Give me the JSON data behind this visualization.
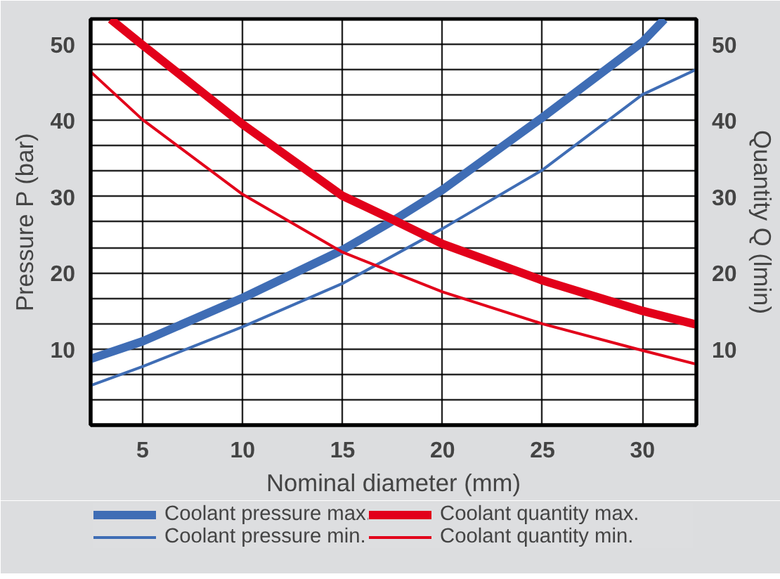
{
  "chart_data": {
    "type": "line",
    "xlabel": "Nominal diameter (mm)",
    "ylabel": "Pressure P (bar)",
    "y2label": "Quantity Q (lmin)",
    "xlim": [
      2.4,
      32.7
    ],
    "xticks": [
      5,
      10,
      15,
      20,
      25,
      30
    ],
    "ylim": [
      0,
      53.33
    ],
    "yticks": [
      {
        "value": 3.33,
        "label": null
      },
      {
        "value": 6.67,
        "label": null
      },
      10,
      {
        "value": 13.33,
        "label": null
      },
      {
        "value": 16.67,
        "label": null
      },
      20,
      {
        "value": 23.33,
        "label": null
      },
      {
        "value": 26.67,
        "label": null
      },
      30,
      {
        "value": 33.33,
        "label": null
      },
      {
        "value": 36.67,
        "label": null
      },
      40,
      {
        "value": 43.33,
        "label": null
      },
      {
        "value": 46.67,
        "label": null
      },
      50
    ],
    "y2lim": [
      0,
      53.33
    ],
    "y2ticks": [
      10,
      20,
      30,
      40,
      50
    ],
    "grid": true,
    "legend": "bottom",
    "marker": "none",
    "line_style": "solid",
    "series": [
      {
        "name": "Coolant pressure max.",
        "color": "#3f6db5",
        "x": [
          2.4,
          5,
          10,
          15,
          17.5,
          20,
          25,
          30,
          31.1
        ],
        "values": [
          8.7,
          11,
          16.7,
          23,
          26.8,
          30.9,
          40.4,
          50.3,
          53.3
        ]
      },
      {
        "name": "Coolant pressure min.",
        "color": "#3f6db5",
        "x": [
          2.4,
          5,
          10,
          15,
          20,
          25,
          30,
          32.7
        ],
        "values": [
          5.2,
          7.7,
          12.9,
          18.6,
          25.8,
          33.5,
          43.4,
          46.7
        ]
      },
      {
        "name": "Coolant quantity max.",
        "color": "#e2001a",
        "axis": "y2",
        "x": [
          3.4,
          5,
          10,
          15,
          17.5,
          20,
          25,
          30,
          32.7
        ],
        "values": [
          53.3,
          49.9,
          39.5,
          30.1,
          27,
          23.8,
          19,
          15,
          13.2
        ]
      },
      {
        "name": "Coolant quantity min.",
        "color": "#e2001a",
        "axis": "y2",
        "x": [
          2.4,
          5,
          10,
          15,
          20,
          25,
          30,
          32.7
        ],
        "values": [
          46.4,
          40.1,
          30.3,
          22.7,
          17.5,
          13.3,
          9.8,
          8
        ]
      }
    ]
  }
}
